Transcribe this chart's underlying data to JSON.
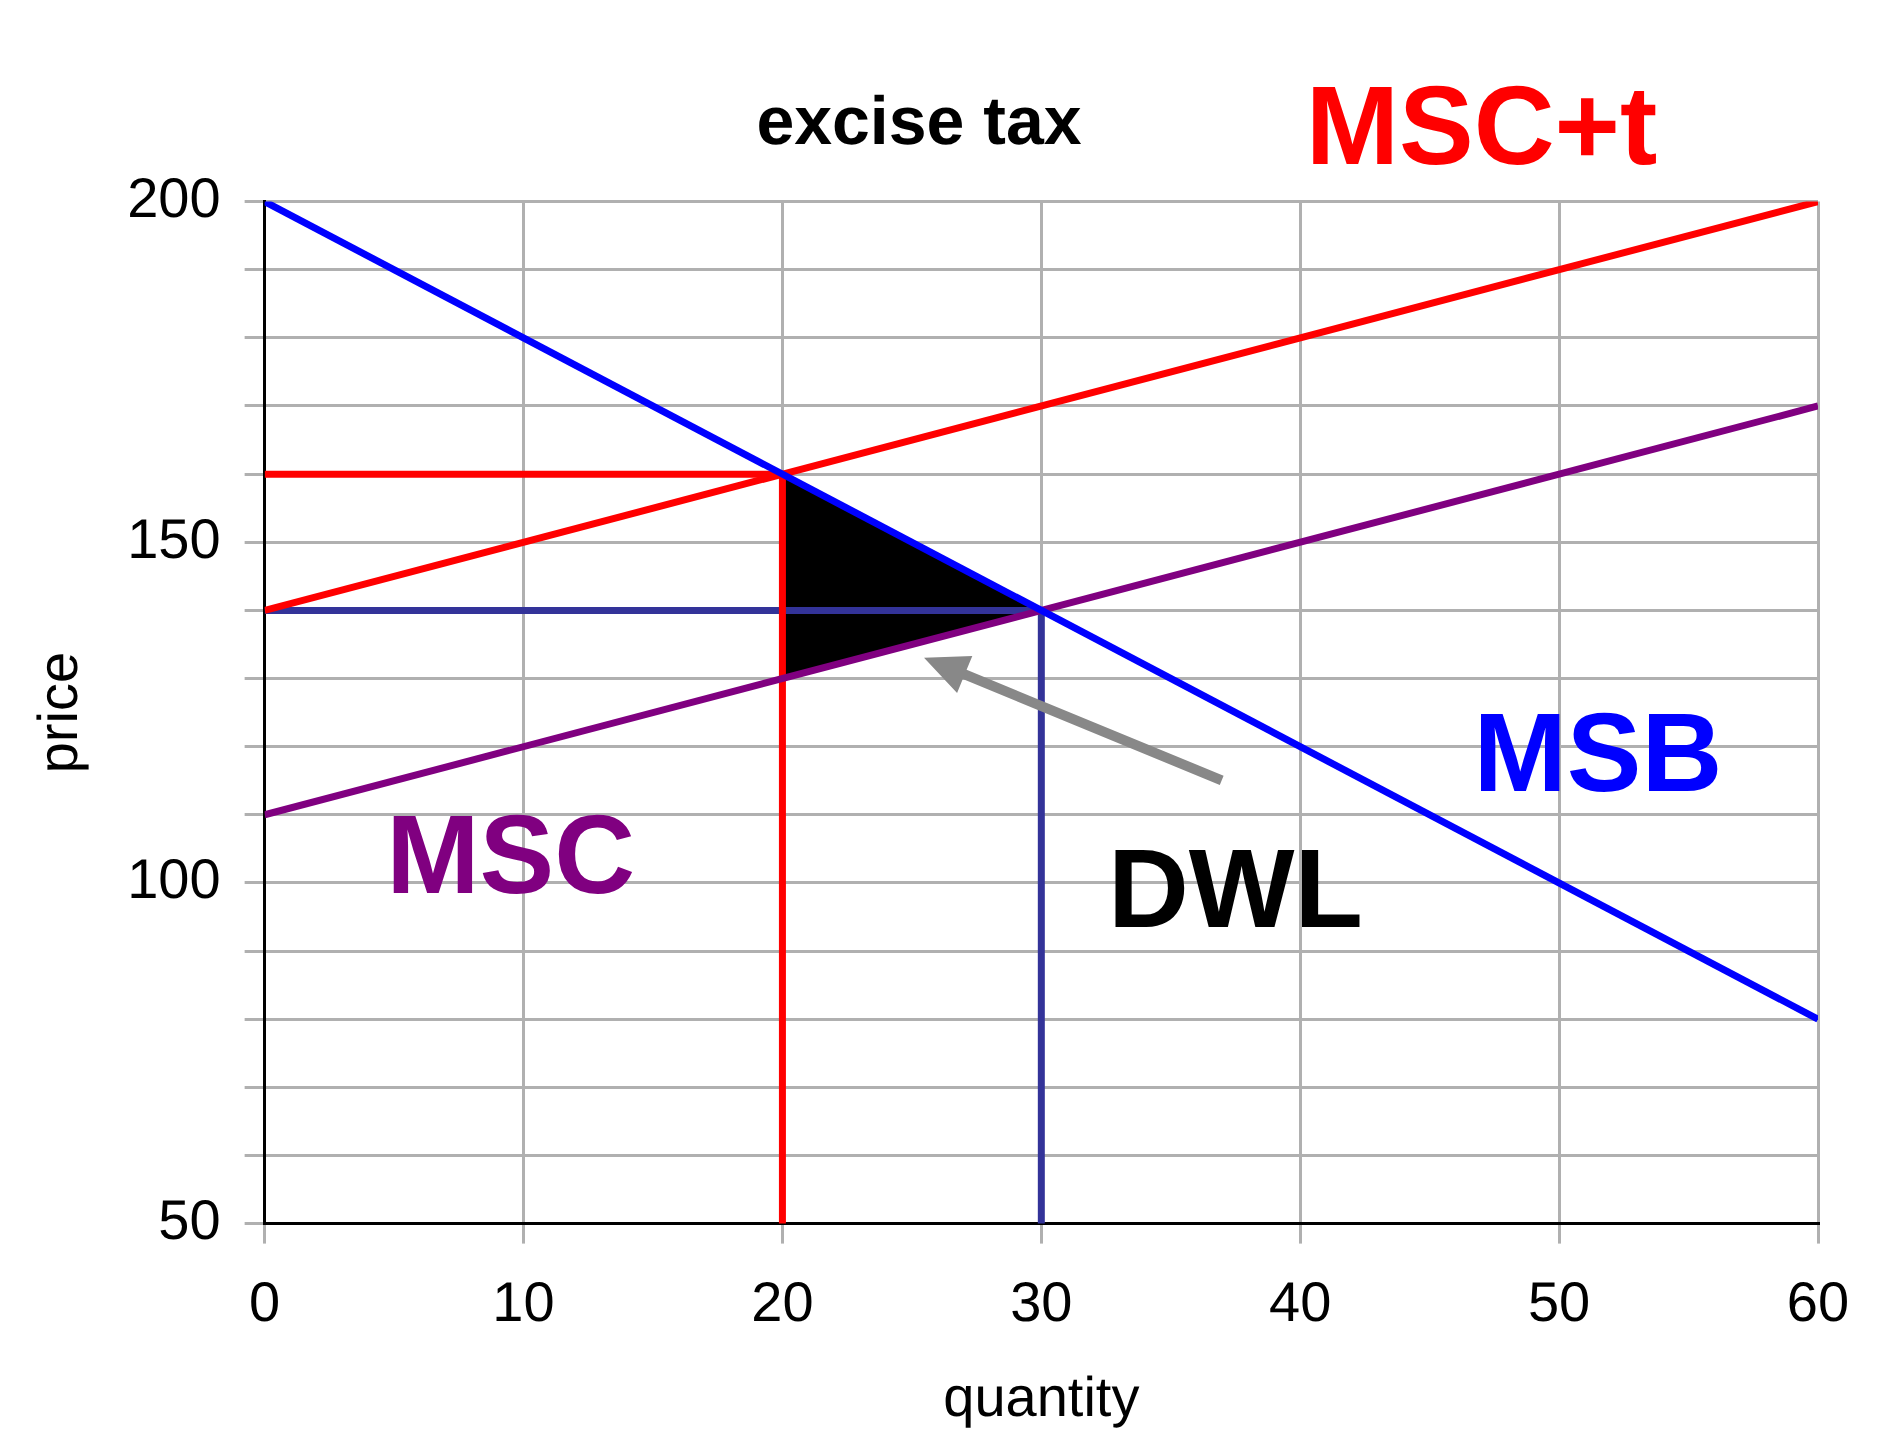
{
  "chart_data": {
    "type": "line",
    "title": "excise tax",
    "xlabel": "quantity",
    "ylabel": "price",
    "xlim": [
      0,
      60
    ],
    "ylim": [
      50,
      200
    ],
    "xticks": [
      0,
      10,
      20,
      30,
      40,
      50,
      60
    ],
    "yticks": [
      50,
      {
        "value": 60,
        "label": null
      },
      {
        "value": 70,
        "label": null
      },
      {
        "value": 80,
        "label": null
      },
      {
        "value": 90,
        "label": null
      },
      100,
      {
        "value": 110,
        "label": null
      },
      {
        "value": 120,
        "label": null
      },
      {
        "value": 130,
        "label": null
      },
      {
        "value": 140,
        "label": null
      },
      150,
      {
        "value": 160,
        "label": null
      },
      {
        "value": 170,
        "label": null
      },
      {
        "value": 180,
        "label": null
      },
      {
        "value": 190,
        "label": null
      },
      200
    ],
    "grid": true,
    "legend": false,
    "marker": "none",
    "line_style": "solid",
    "series": [
      {
        "name": "MSB",
        "color": "#0000ff",
        "x": [
          0,
          60
        ],
        "values": [
          200,
          80
        ]
      },
      {
        "name": "MSC",
        "color": "#800080",
        "x": [
          0,
          60
        ],
        "values": [
          110,
          170
        ]
      },
      {
        "name": "MSC+t",
        "color": "#ff0000",
        "x": [
          0,
          60
        ],
        "values": [
          140,
          200
        ]
      },
      {
        "color": "#ff0000",
        "x": [
          0,
          20,
          20
        ],
        "values": [
          160,
          160,
          50
        ]
      },
      {
        "color": "#333399",
        "x": [
          0,
          30,
          30
        ],
        "values": [
          140,
          140,
          50
        ]
      },
      {
        "name": "DWL",
        "type": "area",
        "color": "#000000",
        "x": [
          20,
          20,
          30,
          20
        ],
        "values": [
          160,
          130,
          140,
          160
        ]
      }
    ]
  }
}
